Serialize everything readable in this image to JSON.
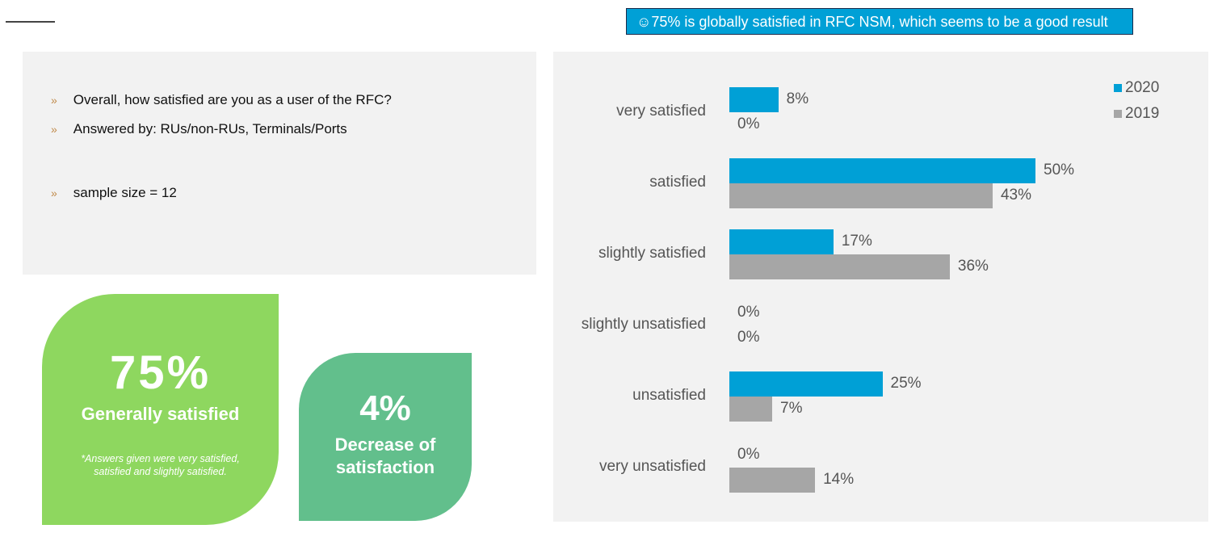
{
  "headline": "☺75% is globally satisfied in RFC NSM, which seems to be a good result",
  "info": {
    "bullets": [
      "Overall, how satisfied are you as a user of the RFC?",
      "Answered by: RUs/non-RUs, Terminals/Ports",
      "sample size = 12"
    ],
    "bullet_mark": "»"
  },
  "kpi1": {
    "value": "75%",
    "label": "Generally satisfied",
    "note": "*Answers given were very satisfied, satisfied and slightly satisfied."
  },
  "kpi2": {
    "value": "4%",
    "label_line1": "Decrease of",
    "label_line2": "satisfaction"
  },
  "chart_data": {
    "type": "bar",
    "orientation": "horizontal",
    "categories": [
      "very satisfied",
      "satisfied",
      "slightly satisfied",
      "slightly unsatisfied",
      "unsatisfied",
      "very unsatisfied"
    ],
    "series": [
      {
        "name": "2020",
        "color": "#00a0d6",
        "values": [
          8,
          50,
          17,
          0,
          25,
          0
        ],
        "labels": [
          "8%",
          "50%",
          "17%",
          "0%",
          "25%",
          "0%"
        ]
      },
      {
        "name": "2019",
        "color": "#a6a6a6",
        "values": [
          0,
          43,
          36,
          0,
          7,
          14
        ],
        "labels": [
          "0%",
          "43%",
          "36%",
          "0%",
          "7%",
          "14%"
        ]
      }
    ],
    "unit": "%",
    "legend": "top-right",
    "grid": false
  }
}
